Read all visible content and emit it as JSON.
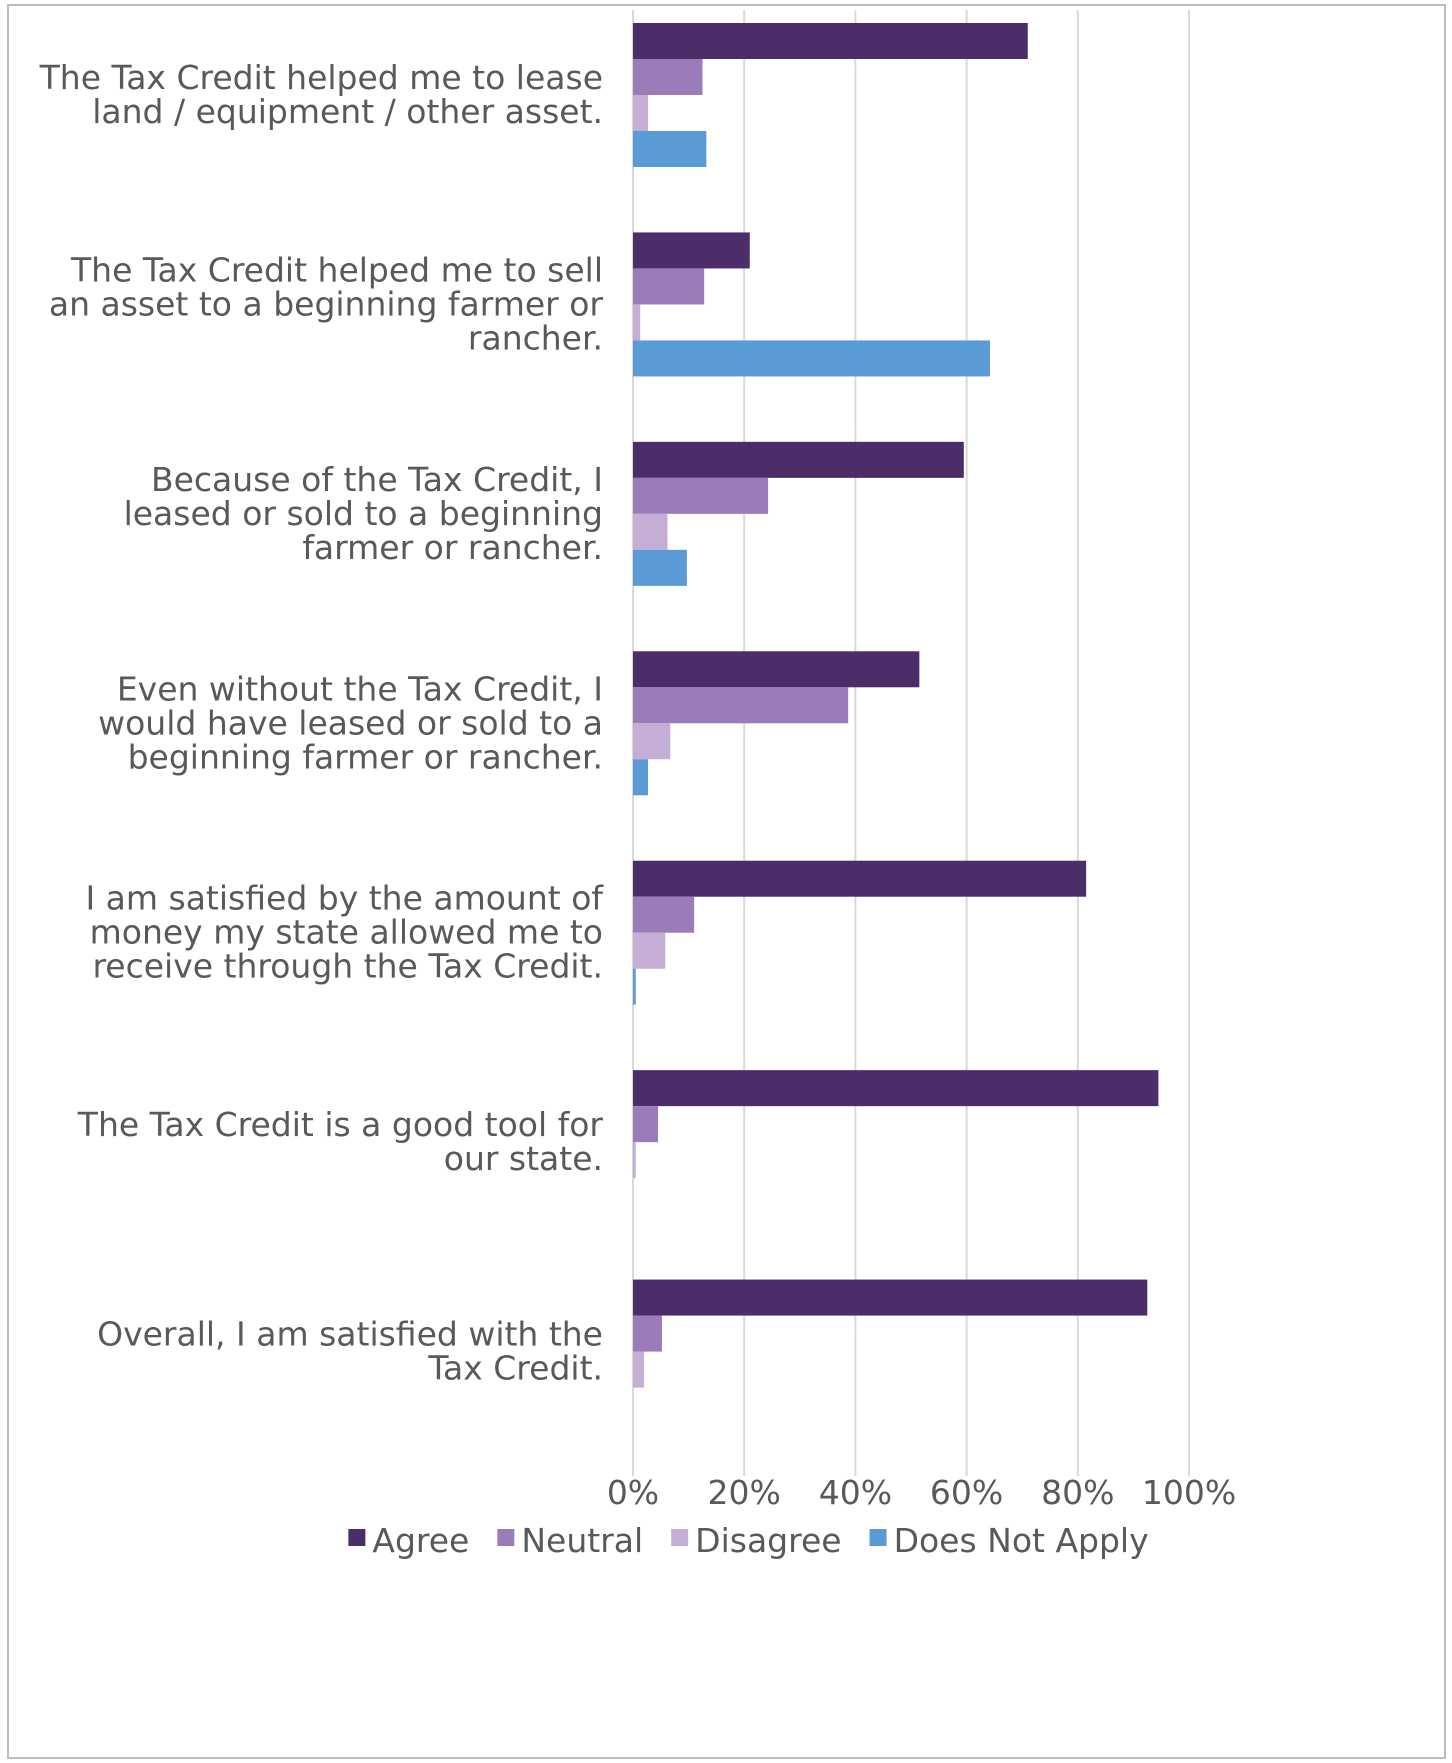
{
  "chart_data": {
    "type": "bar",
    "orientation": "horizontal",
    "title": "",
    "xlabel": "",
    "ylabel": "",
    "xlim": [
      0,
      1
    ],
    "ticks": [
      "0%",
      "20%",
      "40%",
      "60%",
      "80%",
      "100%"
    ],
    "grid": true,
    "legend_position": "bottom",
    "categories": [
      [
        "The Tax Credit helped me to lease",
        "land / equipment / other asset."
      ],
      [
        "The Tax Credit helped me to sell",
        "an asset to a beginning farmer or",
        "rancher."
      ],
      [
        "Because of the Tax Credit, I",
        "leased or sold to a beginning",
        "farmer or rancher."
      ],
      [
        "Even without the Tax Credit, I",
        "would have leased or sold to a",
        "beginning farmer or rancher."
      ],
      [
        "I am satisfied by the amount of",
        "money my state allowed me to",
        "receive through the Tax Credit."
      ],
      [
        "The Tax Credit is a good tool for",
        "our state."
      ],
      [
        "Overall, I am satisfied with the",
        "Tax Credit."
      ]
    ],
    "series": [
      {
        "name": "Agree",
        "color": "#4b2d69",
        "values": [
          0.71,
          0.21,
          0.595,
          0.515,
          0.815,
          0.945,
          0.925
        ]
      },
      {
        "name": "Neutral",
        "color": "#9b7bb8",
        "values": [
          0.125,
          0.128,
          0.243,
          0.387,
          0.11,
          0.045,
          0.052
        ]
      },
      {
        "name": "Disagree",
        "color": "#c5aed6",
        "values": [
          0.027,
          0.013,
          0.062,
          0.067,
          0.058,
          0.005,
          0.02
        ]
      },
      {
        "name": "Does Not Apply",
        "color": "#5b9bd5",
        "values": [
          0.132,
          0.642,
          0.097,
          0.027,
          0.005,
          0,
          0
        ]
      }
    ]
  }
}
